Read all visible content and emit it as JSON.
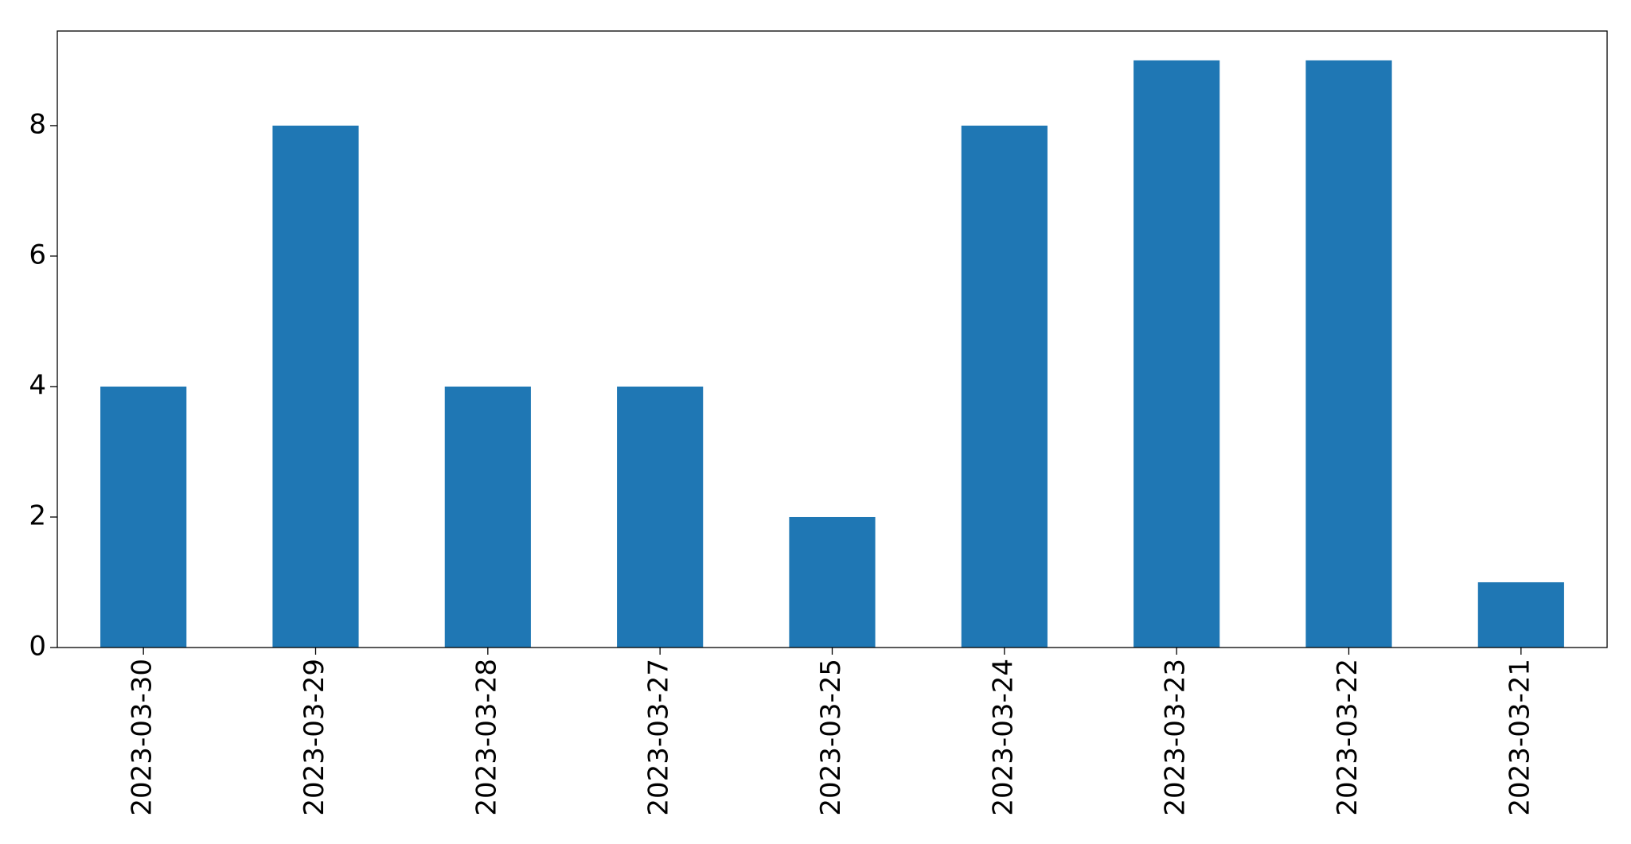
{
  "chart_data": {
    "type": "bar",
    "categories": [
      "2023-03-30",
      "2023-03-29",
      "2023-03-28",
      "2023-03-27",
      "2023-03-25",
      "2023-03-24",
      "2023-03-23",
      "2023-03-22",
      "2023-03-21"
    ],
    "values": [
      4,
      8,
      4,
      4,
      2,
      8,
      9,
      9,
      1
    ],
    "color": "#1f77b4",
    "ylim": [
      0,
      9.45
    ],
    "yticks": [
      0,
      2,
      4,
      6,
      8
    ],
    "grid": false
  }
}
